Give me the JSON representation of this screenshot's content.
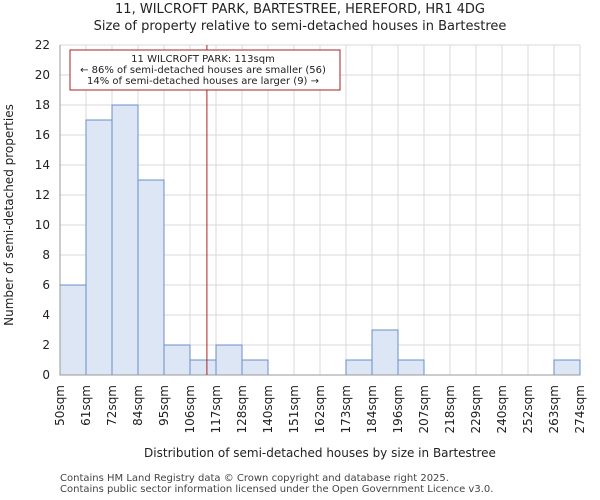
{
  "chart_data": {
    "type": "bar",
    "title": "11, WILCROFT PARK, BARTESTREE, HEREFORD, HR1 4DG",
    "subtitle": "Size of property relative to semi-detached houses in Bartestree",
    "xlabel": "Distribution of semi-detached houses by size in Bartestree",
    "ylabel": "Number of semi-detached properties",
    "bin_edges_labels": [
      "50sqm",
      "61sqm",
      "72sqm",
      "84sqm",
      "95sqm",
      "106sqm",
      "117sqm",
      "128sqm",
      "140sqm",
      "151sqm",
      "162sqm",
      "173sqm",
      "184sqm",
      "196sqm",
      "207sqm",
      "218sqm",
      "229sqm",
      "240sqm",
      "252sqm",
      "263sqm",
      "274sqm"
    ],
    "values": [
      6,
      17,
      18,
      13,
      2,
      1,
      2,
      1,
      0,
      0,
      0,
      1,
      3,
      1,
      0,
      0,
      0,
      0,
      0,
      1
    ],
    "ylim": [
      0,
      22
    ],
    "yticks": [
      0,
      2,
      4,
      6,
      8,
      10,
      12,
      14,
      16,
      18,
      20,
      22
    ],
    "bar_color": "#dce6f5",
    "bar_edge_color": "#6a8fc8",
    "marker": {
      "value_sqm": 113,
      "bin_position": 5.65,
      "color": "#aa2222",
      "annotation_lines": [
        "11 WILCROFT PARK: 113sqm",
        "← 86% of semi-detached houses are smaller (56)",
        "14% of semi-detached houses are larger (9) →"
      ]
    }
  },
  "footer": {
    "line1": "Contains HM Land Registry data © Crown copyright and database right 2025.",
    "line2": "Contains public sector information licensed under the Open Government Licence v3.0."
  }
}
